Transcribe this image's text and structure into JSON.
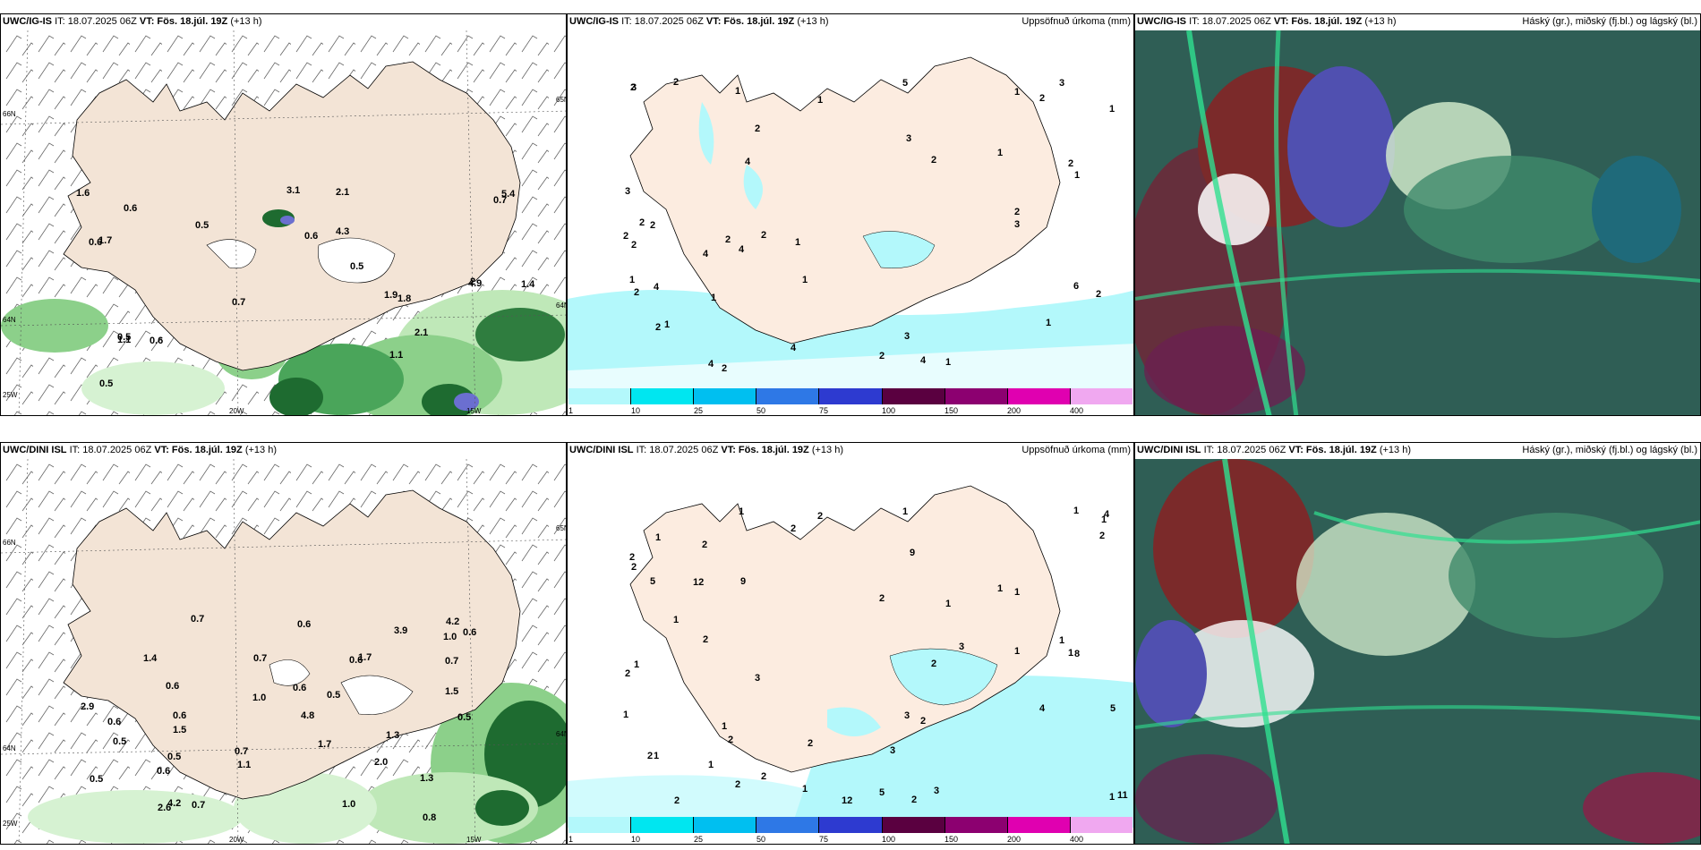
{
  "rows": [
    {
      "model": "UWC/IG-IS",
      "init_label": "IT: 18.07.2025 06Z",
      "valid_label": "VT: Fös. 18.júl. 19Z",
      "lead": "(+13 h)",
      "wind_numbers": [
        "2",
        "0.5",
        "0.7",
        "0.5",
        "0.7",
        "0.6",
        "0.6",
        "3.1",
        "1.6",
        "0.6",
        "2.1",
        "4.9",
        "5.4",
        "4.3",
        "1.9",
        "1.8",
        "1.4",
        "0.5",
        "0.5",
        "1.7",
        "1.1",
        "0.6",
        "1.1",
        "2.1"
      ],
      "precip_numbers": [
        "2",
        "2",
        "4",
        "1",
        "3",
        "4",
        "1",
        "2",
        "1",
        "1",
        "1",
        "2",
        "3",
        "2",
        "2",
        "3",
        "2",
        "1",
        "1",
        "2",
        "3",
        "4",
        "2",
        "2",
        "2",
        "2",
        "4",
        "3",
        "6",
        "2",
        "3",
        "5",
        "2",
        "1",
        "4",
        "4",
        "2",
        "2",
        "2",
        "2",
        "4",
        "1",
        "1",
        "1",
        "1",
        "1"
      ],
      "axis": {
        "lat_top": "66N",
        "lat_mid": "64N",
        "lat_bot": "25W",
        "lon_a": "20W",
        "lon_b": "15W",
        "lat_right_top": "65N",
        "lat_right_mid": "64N"
      }
    },
    {
      "model": "UWC/DINI ISL",
      "init_label": "IT: 18.07.2025 06Z",
      "valid_label": "VT: Fös. 18.júl. 19Z",
      "lead": "(+13 h)",
      "wind_numbers": [
        "1.4",
        "0.5",
        "0.5",
        "0.6",
        "0.6",
        "0.6",
        "0.7",
        "0.5",
        "0.7",
        "0.6",
        "1.7",
        "0.6",
        "1.1",
        "1.0",
        "0.7",
        "1.3",
        "0.5",
        "0.5",
        "0.7",
        "0.6",
        "0.8",
        "1.0",
        "0.7",
        "1.3",
        "1.0",
        "1.5",
        "2.9",
        "2.6",
        "3.9",
        "4.2",
        "4.8",
        "4.2",
        "2.0",
        "1.7",
        "0.6",
        "0.6",
        "1.5"
      ],
      "precip_numbers": [
        "1",
        "1",
        "2",
        "2",
        "1",
        "1",
        "2",
        "2",
        "1",
        "1",
        "1",
        "2",
        "1",
        "1",
        "1",
        "2",
        "3",
        "1",
        "1",
        "1",
        "1",
        "1",
        "1",
        "5",
        "5",
        "3",
        "2",
        "8",
        "2",
        "2",
        "1",
        "1",
        "1",
        "4",
        "5",
        "3",
        "2",
        "2",
        "2",
        "2",
        "12",
        "11",
        "12",
        "9",
        "4",
        "2",
        "3",
        "2",
        "3",
        "9",
        "2",
        "2",
        "2"
      ],
      "axis": {
        "lat_top": "66N",
        "lat_mid": "64N",
        "lat_bot": "25W",
        "lon_a": "20W",
        "lon_b": "15W",
        "lat_right_top": "65N",
        "lat_right_mid": "64N"
      }
    }
  ],
  "precip_title": "Uppsöfnuð úrkoma (mm)",
  "cloud_title": "Háský (gr.), miðský (fj.bl.) og lágský (bl.)",
  "colorbar": {
    "labels": [
      "1",
      "10",
      "25",
      "50",
      "75",
      "100",
      "150",
      "200",
      "400"
    ],
    "colors": [
      "#b3f8fb",
      "#00e6f0",
      "#00bff0",
      "#2e78e6",
      "#2d3ad0",
      "#5a0040",
      "#8c0070",
      "#e000b0",
      "#f0a8f0"
    ]
  }
}
